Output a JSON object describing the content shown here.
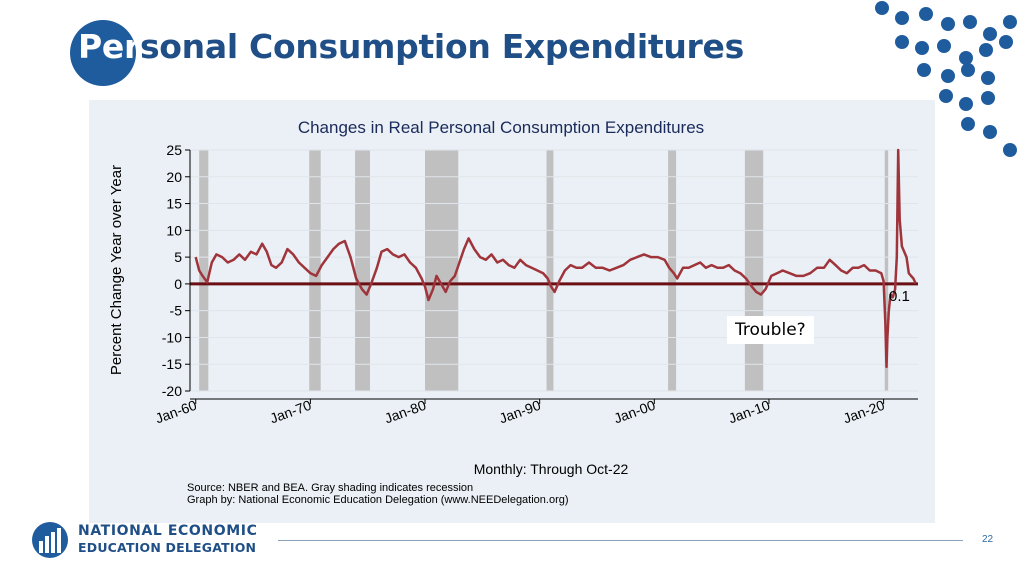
{
  "slide": {
    "title_part1": "Per",
    "title_part2": "sonal Consumption Expenditures",
    "page_number": "22",
    "org_line1": "NATIONAL ECONOMIC",
    "org_line2": "EDUCATION DELEGATION",
    "callout": "Trouble?"
  },
  "colors": {
    "brand_blue": "#1f5c9e",
    "line": "#a0343b",
    "zero_line": "#6b0f14",
    "recession": "#c0c0c0"
  },
  "chart_data": {
    "type": "line",
    "title": "Changes in Real Personal Consumption Expenditures",
    "xlabel": "Monthly: Through Oct-22",
    "ylabel": "Percent Change Year over Year",
    "ylim": [
      -20,
      25
    ],
    "xlim": [
      1959.5,
      2023.0
    ],
    "yticks": [
      25,
      20,
      15,
      10,
      5,
      0,
      -5,
      -10,
      -15,
      -20
    ],
    "xticks": [
      {
        "label": "Jan-60",
        "value": 1960
      },
      {
        "label": "Jan-70",
        "value": 1970
      },
      {
        "label": "Jan-80",
        "value": 1980
      },
      {
        "label": "Jan-90",
        "value": 1990
      },
      {
        "label": "Jan-00",
        "value": 2000
      },
      {
        "label": "Jan-10",
        "value": 2010
      },
      {
        "label": "Jan-20",
        "value": 2020
      }
    ],
    "recessions": [
      [
        1960.3,
        1961.1
      ],
      [
        1969.9,
        1970.9
      ],
      [
        1973.9,
        1975.2
      ],
      [
        1980.0,
        1982.9
      ],
      [
        1990.6,
        1991.2
      ],
      [
        2001.2,
        2001.9
      ],
      [
        2007.9,
        2009.5
      ],
      [
        2020.1,
        2020.4
      ]
    ],
    "series": [
      {
        "name": "Real PCE % change YoY",
        "x": [
          1960.0,
          1960.3,
          1960.6,
          1961.0,
          1961.4,
          1961.8,
          1962.3,
          1962.8,
          1963.3,
          1963.8,
          1964.3,
          1964.8,
          1965.3,
          1965.8,
          1966.2,
          1966.6,
          1967.0,
          1967.5,
          1968.0,
          1968.5,
          1969.0,
          1969.5,
          1970.0,
          1970.5,
          1971.0,
          1971.5,
          1972.0,
          1972.5,
          1973.0,
          1973.5,
          1974.0,
          1974.5,
          1974.9,
          1975.3,
          1975.8,
          1976.2,
          1976.7,
          1977.2,
          1977.7,
          1978.2,
          1978.7,
          1979.2,
          1979.7,
          1980.0,
          1980.3,
          1980.7,
          1981.0,
          1981.4,
          1981.8,
          1982.2,
          1982.6,
          1983.0,
          1983.4,
          1983.8,
          1984.3,
          1984.8,
          1985.3,
          1985.8,
          1986.3,
          1986.8,
          1987.3,
          1987.8,
          1988.3,
          1988.8,
          1989.3,
          1989.8,
          1990.3,
          1990.7,
          1991.0,
          1991.3,
          1991.7,
          1992.2,
          1992.7,
          1993.2,
          1993.7,
          1994.3,
          1994.9,
          1995.5,
          1996.1,
          1996.7,
          1997.3,
          1997.9,
          1998.5,
          1999.1,
          1999.7,
          2000.3,
          2000.9,
          2001.3,
          2001.7,
          2002.0,
          2002.5,
          2003.0,
          2003.5,
          2004.0,
          2004.5,
          2005.0,
          2005.5,
          2006.0,
          2006.5,
          2007.0,
          2007.5,
          2008.0,
          2008.5,
          2008.9,
          2009.3,
          2009.7,
          2010.2,
          2010.7,
          2011.2,
          2011.8,
          2012.4,
          2013.0,
          2013.6,
          2014.2,
          2014.8,
          2015.3,
          2015.8,
          2016.3,
          2016.8,
          2017.3,
          2017.8,
          2018.3,
          2018.8,
          2019.3,
          2019.8,
          2020.0,
          2020.15,
          2020.25,
          2020.33,
          2020.45,
          2020.6,
          2020.8,
          2021.0,
          2021.15,
          2021.27,
          2021.4,
          2021.6,
          2021.8,
          2022.0,
          2022.2,
          2022.4,
          2022.6,
          2022.8
        ],
        "y": [
          5.0,
          2.5,
          1.5,
          0.3,
          4.0,
          5.5,
          5.0,
          4.0,
          4.5,
          5.5,
          4.5,
          6.0,
          5.5,
          7.5,
          6.0,
          3.5,
          3.0,
          4.0,
          6.5,
          5.5,
          4.0,
          3.0,
          2.0,
          1.5,
          3.5,
          5.0,
          6.5,
          7.5,
          8.0,
          5.0,
          1.0,
          -1.0,
          -2.0,
          0.0,
          3.0,
          6.0,
          6.5,
          5.5,
          5.0,
          5.5,
          4.0,
          3.0,
          1.0,
          -0.5,
          -3.0,
          -1.0,
          1.5,
          0.0,
          -1.5,
          0.5,
          1.5,
          4.0,
          6.5,
          8.5,
          6.5,
          5.0,
          4.5,
          5.5,
          4.0,
          4.5,
          3.5,
          3.0,
          4.5,
          3.5,
          3.0,
          2.5,
          2.0,
          1.0,
          -0.5,
          -1.5,
          0.5,
          2.5,
          3.5,
          3.0,
          3.0,
          4.0,
          3.0,
          3.0,
          2.5,
          3.0,
          3.5,
          4.5,
          5.0,
          5.5,
          5.0,
          5.0,
          4.5,
          3.0,
          2.0,
          1.0,
          3.0,
          3.0,
          3.5,
          4.0,
          3.0,
          3.5,
          3.0,
          3.0,
          3.5,
          2.5,
          2.0,
          1.0,
          -0.5,
          -1.5,
          -2.0,
          -1.0,
          1.5,
          2.0,
          2.5,
          2.0,
          1.5,
          1.5,
          2.0,
          3.0,
          3.0,
          4.5,
          3.5,
          2.5,
          2.0,
          3.0,
          3.0,
          3.5,
          2.5,
          2.5,
          2.0,
          0.5,
          -7.0,
          -15.5,
          -10.0,
          -5.0,
          -2.0,
          -2.5,
          -1.0,
          5.0,
          25.0,
          12.0,
          7.0,
          6.0,
          5.0,
          2.0,
          1.5,
          1.0,
          0.1
        ]
      }
    ],
    "annotations": [
      {
        "text": "0.1",
        "x": 2022.8,
        "y": 0.1
      }
    ],
    "source_line1": "Source: NBER and BEA. Gray shading indicates recession",
    "source_line2": "Graph by: National Economic Education Delegation (www.NEEDelegation.org)"
  }
}
